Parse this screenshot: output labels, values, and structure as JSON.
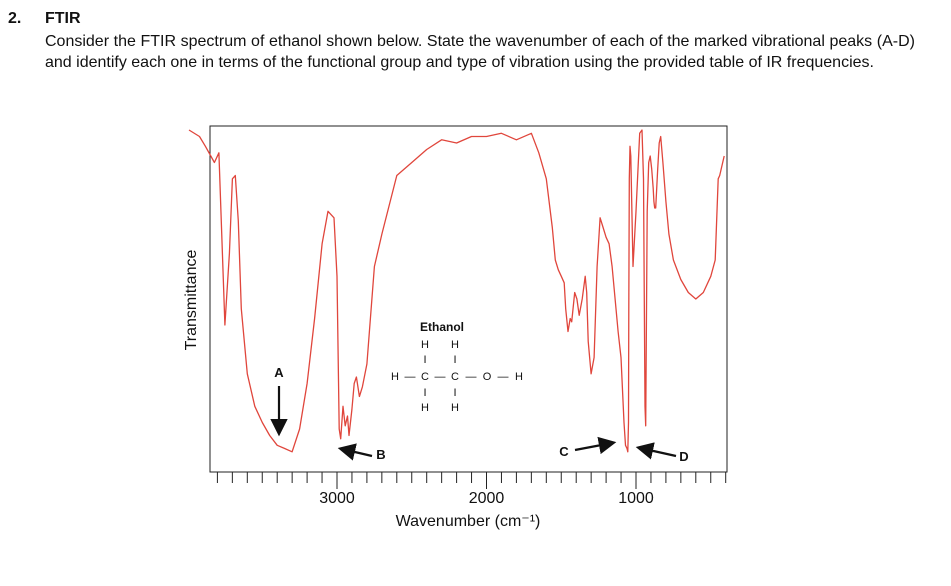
{
  "question": {
    "number": "2.",
    "title": "FTIR",
    "body": "Consider the FTIR spectrum of ethanol shown below. State the wavenumber of each of the marked vibrational peaks (A-D) and identify each one in terms of the functional group and type of vibration using the provided table of IR frequencies."
  },
  "chart_data": {
    "type": "line",
    "title": "",
    "xlabel": "Wavenumber (cm⁻¹)",
    "ylabel": "Transmittance",
    "x_reversed": true,
    "xlim": [
      4000,
      400
    ],
    "ylim": [
      0,
      100
    ],
    "x_ticks": [
      "3000",
      "2000",
      "1000"
    ],
    "x_tick_values": [
      3000,
      2000,
      1000
    ],
    "grid": false,
    "line_color": "#e0463c",
    "series": [
      {
        "x": [
          3990,
          3920,
          3880,
          3820,
          3790,
          3750,
          3720,
          3700,
          3680,
          3660,
          3640,
          3600,
          3550,
          3500,
          3450,
          3400,
          3350,
          3300,
          3250,
          3200,
          3150,
          3100,
          3060,
          3020,
          3000,
          2985,
          2975,
          2960,
          2945,
          2930,
          2920,
          2900,
          2885,
          2870,
          2850,
          2830,
          2800,
          2750,
          2700,
          2600,
          2500,
          2400,
          2300,
          2200,
          2100,
          2000,
          1900,
          1800,
          1700,
          1650,
          1600,
          1560,
          1540,
          1520,
          1500,
          1480,
          1470,
          1455,
          1440,
          1430,
          1410,
          1395,
          1380,
          1360,
          1340,
          1330,
          1320,
          1300,
          1280,
          1260,
          1240,
          1220,
          1200,
          1180,
          1160,
          1140,
          1120,
          1100,
          1090,
          1080,
          1070,
          1060,
          1055,
          1050,
          1048,
          1045,
          1040,
          1035,
          1020,
          1000,
          975,
          960,
          950,
          940,
          935,
          925,
          915,
          905,
          895,
          885,
          880,
          875,
          868,
          855,
          845,
          835,
          820,
          800,
          780,
          750,
          700,
          650,
          600,
          550,
          500,
          470,
          450,
          440,
          430,
          410
        ],
        "y": [
          100,
          98,
          95,
          90,
          93,
          40,
          62,
          85,
          86,
          72,
          45,
          25,
          15,
          10,
          6,
          3,
          2,
          1,
          8,
          22,
          42,
          65,
          75,
          73,
          55,
          8,
          5,
          15,
          9,
          12,
          6,
          14,
          22,
          24,
          18,
          21,
          28,
          58,
          68,
          86,
          90,
          94,
          97,
          96,
          98,
          98,
          99,
          97,
          99,
          93,
          85,
          70,
          60,
          57,
          55,
          53,
          45,
          38,
          42,
          41,
          50,
          48,
          43,
          48,
          55,
          50,
          35,
          25,
          30,
          58,
          73,
          70,
          67,
          65,
          58,
          48,
          38,
          30,
          20,
          10,
          3,
          2,
          1,
          10,
          45,
          85,
          95,
          92,
          58,
          75,
          99,
          100,
          85,
          15,
          9,
          75,
          90,
          92,
          88,
          82,
          78,
          76,
          76,
          88,
          96,
          98,
          90,
          78,
          68,
          60,
          54,
          50,
          48,
          50,
          55,
          60,
          85,
          86,
          88,
          92
        ]
      }
    ],
    "annotations": [
      {
        "label": "A",
        "x": 3330,
        "y": 2
      },
      {
        "label": "B",
        "x": 2975,
        "y": 5
      },
      {
        "label": "C",
        "x": 1060,
        "y": 1
      },
      {
        "label": "D",
        "x": 1045,
        "y": 1
      }
    ]
  },
  "molecule": {
    "name": "Ethanol",
    "top_h1": "H",
    "top_h2": "H",
    "left_h": "H",
    "c1": "C",
    "c2": "C",
    "o": "O",
    "right_h": "H",
    "bottom_h1": "H",
    "bottom_h2": "H",
    "bond_h": "—",
    "bond_v": "I"
  }
}
